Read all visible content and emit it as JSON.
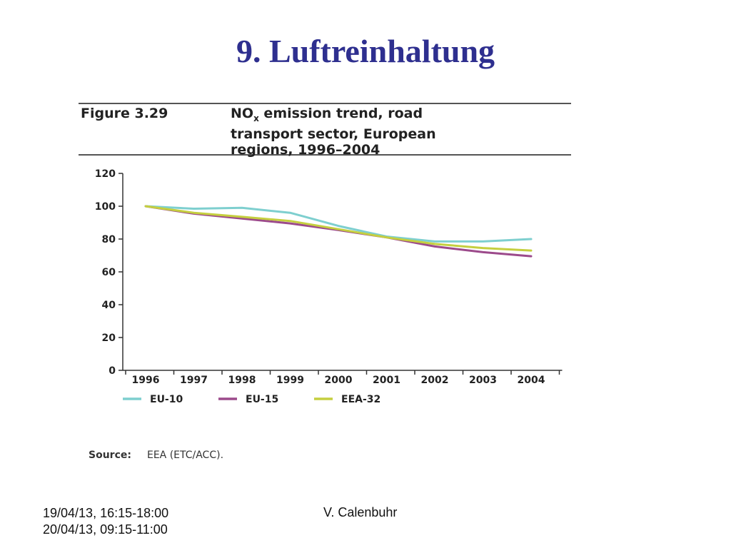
{
  "slide": {
    "title": "9. Luftreinhaltung",
    "footer_dates": [
      "19/04/13, 16:15-18:00",
      "20/04/13, 09:15-11:00"
    ],
    "footer_author": "V. Calenbuhr"
  },
  "figure": {
    "label": "Figure 3.29",
    "caption_lines": [
      "NO",
      "x",
      " emission trend, road",
      "transport sector, European",
      "regions, 1996–2004"
    ],
    "source_label": "Source:",
    "source_value": "EEA (ETC/ACC)."
  },
  "chart_data": {
    "type": "line",
    "title": "NOx emission trend, road transport sector, European regions, 1996–2004",
    "xlabel": "",
    "ylabel": "",
    "x": [
      "1996",
      "1997",
      "1998",
      "1999",
      "2000",
      "2001",
      "2002",
      "2003",
      "2004"
    ],
    "ylim": [
      0,
      120
    ],
    "yticks": [
      0,
      20,
      40,
      60,
      80,
      100,
      120
    ],
    "grid": false,
    "legend_position": "bottom",
    "series": [
      {
        "name": "EU-10",
        "color": "#7ecfcf",
        "values": [
          100,
          98.5,
          99,
          96,
          88,
          81.5,
          78.5,
          78.5,
          80
        ]
      },
      {
        "name": "EU-15",
        "color": "#9c4a8b",
        "values": [
          100,
          95.5,
          92.5,
          89.5,
          85.5,
          81,
          75.5,
          72,
          69.5
        ]
      },
      {
        "name": "EEA-32",
        "color": "#c5cf3f",
        "values": [
          100,
          96,
          93.5,
          91,
          86,
          81,
          77,
          74.5,
          73
        ]
      }
    ]
  }
}
